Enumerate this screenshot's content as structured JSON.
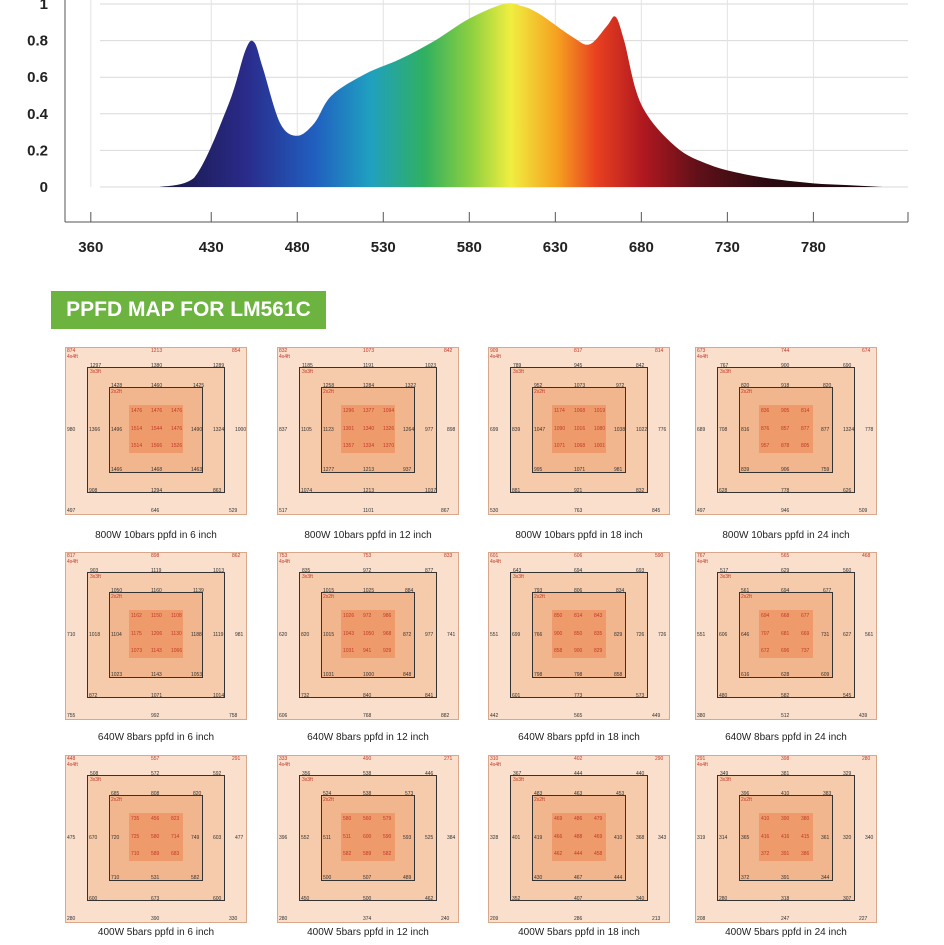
{
  "spectrum_chart": {
    "y_ticks": [
      "1",
      "0.8",
      "0.6",
      "0.4",
      "0.2",
      "0"
    ],
    "x_ticks": [
      "360",
      "430",
      "480",
      "530",
      "580",
      "630",
      "680",
      "730",
      "780"
    ]
  },
  "chart_data": {
    "type": "area",
    "x": [
      400,
      420,
      440,
      450,
      455,
      460,
      470,
      480,
      490,
      500,
      520,
      540,
      560,
      580,
      600,
      610,
      620,
      640,
      650,
      660,
      665,
      670,
      680,
      700,
      720,
      740,
      760,
      780,
      800,
      820
    ],
    "values": [
      0,
      0.05,
      0.45,
      0.75,
      0.79,
      0.65,
      0.35,
      0.28,
      0.35,
      0.5,
      0.62,
      0.7,
      0.8,
      0.92,
      1.0,
      0.99,
      0.95,
      0.82,
      0.78,
      0.88,
      0.93,
      0.8,
      0.45,
      0.22,
      0.12,
      0.07,
      0.04,
      0.02,
      0.01,
      0
    ],
    "xlim": [
      345,
      835
    ],
    "ylim": [
      0,
      1
    ],
    "title": "",
    "xlabel": "",
    "ylabel": ""
  },
  "section_title": "PPFD MAP FOR LM561C",
  "maps": [
    {
      "caption": "800W 10bars ppfd in 6 inch",
      "outer": [
        "874",
        "1213",
        "854",
        "980",
        "1000",
        "497",
        "646",
        "529"
      ],
      "ring2": [
        "1297",
        "1380",
        "1289",
        "1366",
        "1324",
        "908",
        "1294",
        "863"
      ],
      "ring3": [
        "1428",
        "1460",
        "1425",
        "1496",
        "1490",
        "1466",
        "1468",
        "1463"
      ],
      "inner": [
        "1476",
        "1476",
        "1476",
        "1514",
        "1544",
        "1476",
        "1514",
        "1566",
        "1526"
      ],
      "tags": [
        "4x4ft",
        "3x3ft",
        "2x2ft"
      ]
    },
    {
      "caption": "800W 10bars ppfd in 12 inch",
      "outer": [
        "832",
        "1073",
        "842",
        "837",
        "898",
        "517",
        "1101",
        "867"
      ],
      "ring2": [
        "1185",
        "1191",
        "1023",
        "1105",
        "977",
        "1074",
        "1213",
        "1037"
      ],
      "ring3": [
        "1258",
        "1284",
        "1322",
        "1123",
        "1264",
        "1277",
        "1213",
        "937"
      ],
      "inner": [
        "1296",
        "1377",
        "1094",
        "1301",
        "1340",
        "1326",
        "1357",
        "1334",
        "1370"
      ],
      "tags": [
        "4x4ft",
        "3x3ft",
        "2x2ft"
      ]
    },
    {
      "caption": "800W 10bars ppfd in 18 inch",
      "outer": [
        "909",
        "817",
        "814",
        "699",
        "776",
        "530",
        "763",
        "845"
      ],
      "ring2": [
        "789",
        "945",
        "842",
        "839",
        "1022",
        "881",
        "921",
        "832"
      ],
      "ring3": [
        "952",
        "1073",
        "972",
        "1047",
        "1038",
        "995",
        "1071",
        "981"
      ],
      "inner": [
        "1174",
        "1068",
        "1019",
        "1090",
        "1016",
        "1080",
        "1071",
        "1068",
        "1001"
      ],
      "tags": [
        "4x4ft",
        "3x3ft",
        "2x2ft"
      ]
    },
    {
      "caption": "800W 10bars ppfd in 24 inch",
      "outer": [
        "673",
        "744",
        "674",
        "689",
        "778",
        "497",
        "946",
        "509"
      ],
      "ring2": [
        "767",
        "900",
        "690",
        "708",
        "1324",
        "628",
        "778",
        "626"
      ],
      "ring3": [
        "820",
        "918",
        "820",
        "816",
        "877",
        "839",
        "906",
        "759"
      ],
      "inner": [
        "836",
        "905",
        "814",
        "876",
        "857",
        "877",
        "957",
        "878",
        "805"
      ],
      "tags": [
        "4x4ft",
        "3x3ft",
        "2x2ft"
      ]
    },
    {
      "caption": "640W 8bars ppfd in 6 inch",
      "outer": [
        "817",
        "898",
        "862",
        "710",
        "981",
        "755",
        "992",
        "758"
      ],
      "ring2": [
        "903",
        "1119",
        "1013",
        "1018",
        "1119",
        "872",
        "1071",
        "1014"
      ],
      "ring3": [
        "1050",
        "1160",
        "1139",
        "1104",
        "1188",
        "1023",
        "1143",
        "1053"
      ],
      "inner": [
        "1162",
        "1150",
        "1108",
        "1175",
        "1206",
        "1130",
        "1073",
        "1143",
        "1066"
      ],
      "tags": [
        "4x4ft",
        "3x3ft",
        "2x2ft"
      ]
    },
    {
      "caption": "640W 8bars ppfd in 12 inch",
      "outer": [
        "753",
        "753",
        "833",
        "620",
        "741",
        "606",
        "768",
        "882"
      ],
      "ring2": [
        "835",
        "972",
        "877",
        "820",
        "977",
        "732",
        "840",
        "841"
      ],
      "ring3": [
        "1015",
        "1025",
        "884",
        "1015",
        "872",
        "1031",
        "1000",
        "848"
      ],
      "inner": [
        "1026",
        "972",
        "986",
        "1043",
        "1050",
        "968",
        "1031",
        "941",
        "929"
      ],
      "tags": [
        "4x4ft",
        "3x3ft",
        "2x2ft"
      ]
    },
    {
      "caption": "640W 8bars ppfd in 18 inch",
      "outer": [
        "601",
        "606",
        "590",
        "551",
        "726",
        "442",
        "565",
        "449"
      ],
      "ring2": [
        "643",
        "694",
        "693",
        "699",
        "726",
        "601",
        "773",
        "573"
      ],
      "ring3": [
        "793",
        "806",
        "834",
        "766",
        "829",
        "798",
        "798",
        "858"
      ],
      "inner": [
        "850",
        "814",
        "843",
        "900",
        "850",
        "835",
        "858",
        "900",
        "829"
      ],
      "tags": [
        "4x4ft",
        "3x3ft",
        "2x2ft"
      ]
    },
    {
      "caption": "640W 8bars ppfd in 24 inch",
      "outer": [
        "767",
        "565",
        "468",
        "551",
        "561",
        "380",
        "512",
        "439"
      ],
      "ring2": [
        "517",
        "629",
        "560",
        "606",
        "627",
        "480",
        "582",
        "545"
      ],
      "ring3": [
        "561",
        "694",
        "677",
        "646",
        "731",
        "616",
        "628",
        "609"
      ],
      "inner": [
        "694",
        "668",
        "677",
        "707",
        "681",
        "669",
        "672",
        "696",
        "737"
      ],
      "tags": [
        "4x4ft",
        "3x3ft",
        "2x2ft"
      ]
    },
    {
      "caption": "400W 5bars ppfd in 6 inch",
      "outer": [
        "448",
        "557",
        "291",
        "475",
        "477",
        "280",
        "390",
        "330"
      ],
      "ring2": [
        "508",
        "572",
        "592",
        "670",
        "603",
        "600",
        "673",
        "600"
      ],
      "ring3": [
        "685",
        "808",
        "820",
        "720",
        "749",
        "710",
        "531",
        "582"
      ],
      "inner": [
        "735",
        "456",
        "823",
        "725",
        "580",
        "714",
        "710",
        "589",
        "683"
      ],
      "tags": [
        "4x4ft",
        "3x3ft",
        "2x2ft"
      ]
    },
    {
      "caption": "400W 5bars ppfd in 12 inch",
      "outer": [
        "333",
        "490",
        "271",
        "396",
        "384",
        "280",
        "374",
        "240"
      ],
      "ring2": [
        "356",
        "538",
        "446",
        "552",
        "525",
        "450",
        "500",
        "462"
      ],
      "ring3": [
        "524",
        "538",
        "573",
        "511",
        "593",
        "500",
        "507",
        "489"
      ],
      "inner": [
        "580",
        "560",
        "579",
        "511",
        "600",
        "590",
        "582",
        "589",
        "582"
      ],
      "tags": [
        "4x4ft",
        "3x3ft",
        "2x2ft"
      ]
    },
    {
      "caption": "400W 5bars ppfd in 18 inch",
      "outer": [
        "310",
        "402",
        "290",
        "328",
        "343",
        "209",
        "286",
        "213"
      ],
      "ring2": [
        "367",
        "444",
        "440",
        "401",
        "368",
        "352",
        "407",
        "340"
      ],
      "ring3": [
        "483",
        "463",
        "453",
        "419",
        "410",
        "430",
        "467",
        "444"
      ],
      "inner": [
        "469",
        "486",
        "479",
        "466",
        "488",
        "469",
        "462",
        "444",
        "458"
      ],
      "tags": [
        "4x4ft",
        "3x3ft",
        "2x2ft"
      ]
    },
    {
      "caption": "400W 5bars ppfd in 24 inch",
      "outer": [
        "291",
        "398",
        "280",
        "319",
        "340",
        "208",
        "247",
        "227"
      ],
      "ring2": [
        "349",
        "381",
        "329",
        "314",
        "320",
        "280",
        "318",
        "307"
      ],
      "ring3": [
        "396",
        "410",
        "383",
        "365",
        "361",
        "372",
        "391",
        "344"
      ],
      "inner": [
        "410",
        "390",
        "380",
        "416",
        "416",
        "415",
        "372",
        "391",
        "386"
      ],
      "tags": [
        "4x4ft",
        "3x3ft",
        "2x2ft"
      ]
    }
  ]
}
